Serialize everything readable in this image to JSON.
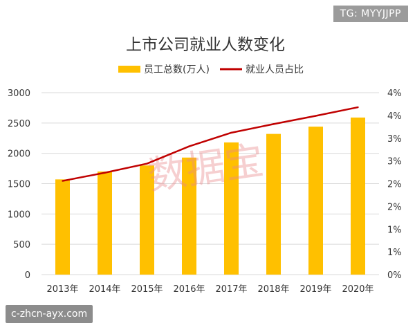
{
  "overlays": {
    "tg_label": "TG: MYYJJPP",
    "site_label": "c-zhcn-ayx.com",
    "watermark": "数据宝"
  },
  "chart_data": {
    "type": "bar+line",
    "title": "上市公司就业人数变化",
    "categories": [
      "2013年",
      "2014年",
      "2015年",
      "2016年",
      "2017年",
      "2018年",
      "2019年",
      "2020年"
    ],
    "series": [
      {
        "name": "员工总数(万人)",
        "type": "bar",
        "axis": "left",
        "color": "#FFC000",
        "values": [
          1570,
          1700,
          1800,
          1930,
          2180,
          2320,
          2440,
          2590
        ]
      },
      {
        "name": "就业人员占比",
        "type": "line",
        "axis": "right",
        "color": "#C00000",
        "values": [
          2.06,
          2.24,
          2.44,
          2.82,
          3.12,
          3.31,
          3.49,
          3.68
        ]
      }
    ],
    "y_left": {
      "min": 0,
      "max": 3000,
      "ticks": [
        {
          "value": 0,
          "label": "0"
        },
        {
          "value": 500,
          "label": "500"
        },
        {
          "value": 1000,
          "label": "1000"
        },
        {
          "value": 1500,
          "label": "1500"
        },
        {
          "value": 2000,
          "label": "2000"
        },
        {
          "value": 2500,
          "label": "2500"
        },
        {
          "value": 3000,
          "label": "3000"
        }
      ]
    },
    "y_right": {
      "min": 0,
      "max": 4,
      "ticks": [
        {
          "value": 0,
          "label": "0%"
        },
        {
          "value": 0.5,
          "label": "1%"
        },
        {
          "value": 1,
          "label": "1%"
        },
        {
          "value": 1.5,
          "label": "2%"
        },
        {
          "value": 2,
          "label": "2%"
        },
        {
          "value": 2.5,
          "label": "3%"
        },
        {
          "value": 3,
          "label": "3%"
        },
        {
          "value": 3.5,
          "label": "4%"
        },
        {
          "value": 4,
          "label": "4%"
        }
      ]
    },
    "legend_position": "top-center",
    "grid": true
  }
}
